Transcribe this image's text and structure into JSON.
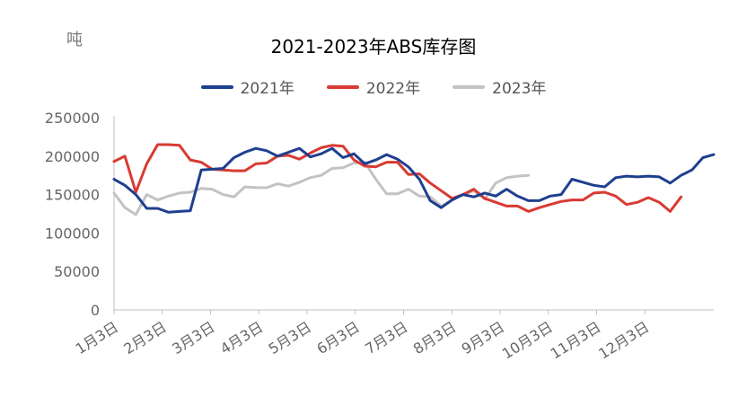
{
  "chart_data": {
    "type": "line",
    "title": "2021-2023年ABS库存图",
    "ylabel": "吨",
    "ylim": [
      0,
      250000
    ],
    "yticks": [
      0,
      50000,
      100000,
      150000,
      200000,
      250000
    ],
    "ytick_labels": [
      "0",
      "50000",
      "100000",
      "150000",
      "200000",
      "250000"
    ],
    "xticks": [
      "1月3日",
      "2月3日",
      "3月3日",
      "4月3日",
      "5月3日",
      "6月3日",
      "7月3日",
      "8月3日",
      "9月3日",
      "10月3日",
      "11月3日",
      "12月3日"
    ],
    "x_unit": "week",
    "legend_position": "top-center",
    "grid": false,
    "series": [
      {
        "name": "2021年",
        "color": "#1f3f8f",
        "values": [
          170000,
          162000,
          150000,
          132000,
          132000,
          127000,
          128000,
          129000,
          182000,
          183000,
          184000,
          198000,
          205000,
          210000,
          207000,
          200000,
          205000,
          210000,
          199000,
          203000,
          210000,
          198000,
          203000,
          190000,
          195000,
          202000,
          196000,
          186000,
          170000,
          142000,
          133000,
          143000,
          150000,
          147000,
          152000,
          148000,
          157000,
          148000,
          142000,
          142000,
          148000,
          150000,
          170000,
          166000,
          162000,
          160000,
          172000,
          174000,
          173000,
          174000,
          173000,
          165000,
          175000,
          182000,
          198000,
          202000
        ]
      },
      {
        "name": "2022年",
        "color": "#d93a32",
        "values": [
          193000,
          200000,
          153000,
          190000,
          215000,
          215000,
          214000,
          195000,
          192000,
          183000,
          182000,
          181000,
          181000,
          190000,
          191000,
          200000,
          201000,
          196000,
          204000,
          211000,
          214000,
          213000,
          195000,
          187000,
          186000,
          192000,
          192000,
          176000,
          177000,
          165000,
          155000,
          145000,
          150000,
          157000,
          145000,
          140000,
          135000,
          135000,
          128000,
          133000,
          137000,
          141000,
          143000,
          143000,
          152000,
          153000,
          148000,
          137000,
          140000,
          146000,
          140000,
          128000,
          147000
        ]
      },
      {
        "name": "2023年",
        "color": "#c3c3c3",
        "values": [
          152000,
          133000,
          124000,
          150000,
          143000,
          148000,
          152000,
          153000,
          158000,
          157000,
          150000,
          147000,
          160000,
          159000,
          159000,
          164000,
          161000,
          166000,
          172000,
          175000,
          184000,
          185000,
          191000,
          192000,
          170000,
          151000,
          151000,
          157000,
          148000,
          147000,
          135000,
          143000,
          150000,
          155000,
          144000,
          165000,
          172000,
          174000,
          175000
        ]
      }
    ]
  }
}
